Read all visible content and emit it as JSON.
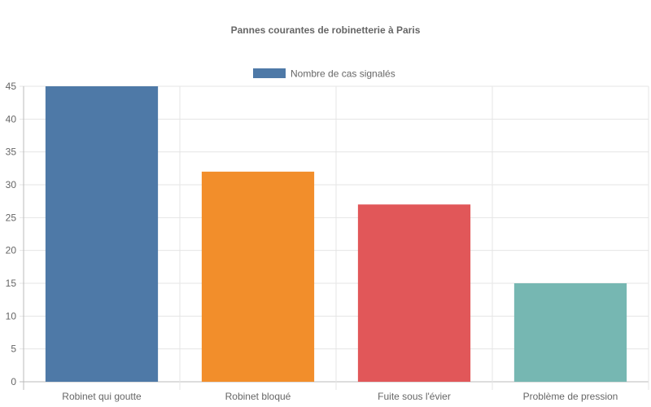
{
  "chart_data": {
    "type": "bar",
    "title": "Pannes courantes de robinetterie à Paris",
    "categories": [
      "Robinet qui goutte",
      "Robinet bloqué",
      "Fuite sous l'évier",
      "Problème de pression"
    ],
    "series": [
      {
        "name": "Nombre de cas signalés",
        "values": [
          45,
          32,
          27,
          15
        ]
      }
    ],
    "colors": [
      "#4e79a7",
      "#f28e2b",
      "#e15759",
      "#76b7b2"
    ],
    "ylim": [
      0,
      45
    ],
    "yticks": [
      0,
      5,
      10,
      15,
      20,
      25,
      30,
      35,
      40,
      45
    ],
    "grid": true,
    "legend": "top"
  }
}
